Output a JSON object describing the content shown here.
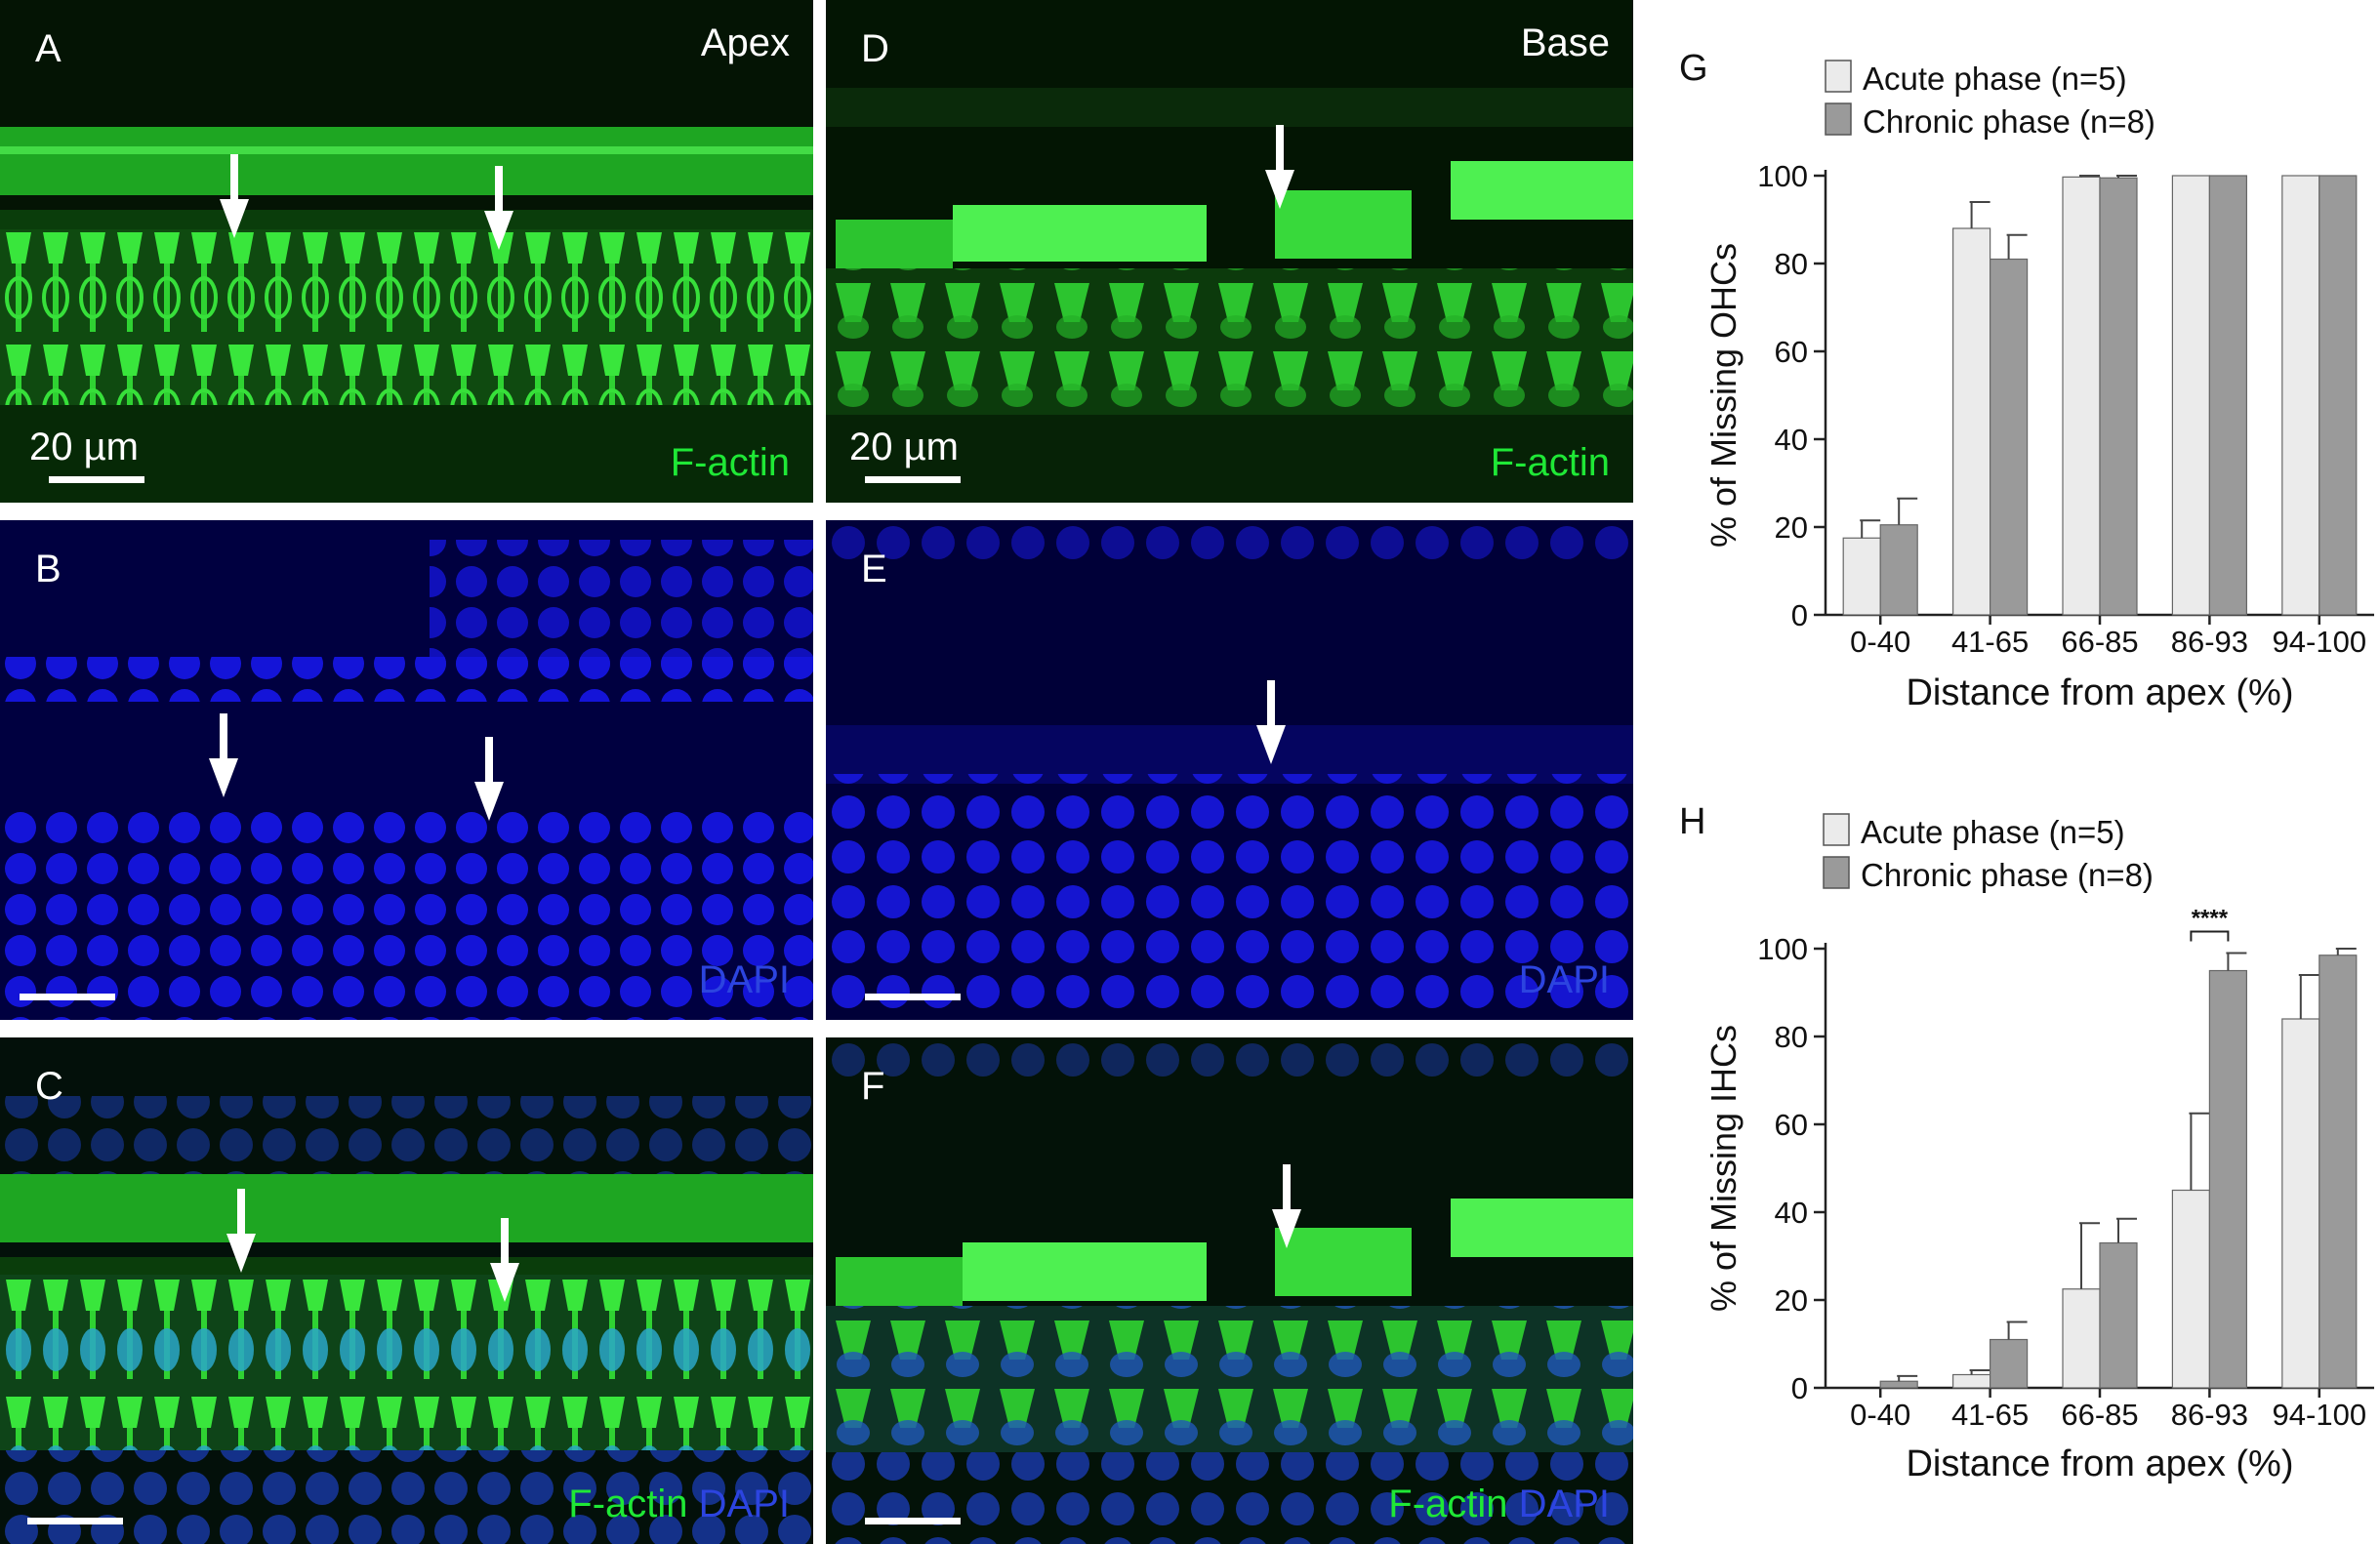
{
  "panels": {
    "A": {
      "letter": "A",
      "region": "Apex",
      "channel": "F-actin",
      "scale": "20 µm"
    },
    "B": {
      "letter": "B",
      "channel": "DAPI"
    },
    "C": {
      "letter": "C",
      "channel_1": "F-actin",
      "channel_2": "DAPI"
    },
    "D": {
      "letter": "D",
      "region": "Base",
      "channel": "F-actin",
      "scale": "20 µm"
    },
    "E": {
      "letter": "E",
      "channel": "DAPI"
    },
    "F": {
      "letter": "F",
      "channel_1": "F-actin",
      "channel_2": "DAPI"
    }
  },
  "colors": {
    "factin": "#1fe836",
    "dapi": "#2c44e0",
    "acute": "#ebebeb",
    "chronic": "#9a9a9a"
  },
  "chart_data": [
    {
      "type": "bar",
      "panel_letter": "G",
      "categories": [
        "0-40",
        "41-65",
        "66-85",
        "86-93",
        "94-100"
      ],
      "series": [
        {
          "name": "Acute phase (n=5)",
          "values": [
            17.5,
            88,
            99.7,
            100,
            100
          ],
          "errors": [
            4,
            6,
            0.3,
            0,
            0
          ]
        },
        {
          "name": "Chronic phase (n=8)",
          "values": [
            20.5,
            81,
            99.5,
            100,
            100
          ],
          "errors": [
            6,
            5.5,
            0.5,
            0,
            0
          ]
        }
      ],
      "xlabel": "Distance from apex (%)",
      "ylabel": "% of Missing OHCs",
      "ylim": [
        0,
        100
      ],
      "yticks": [
        "0",
        "20",
        "40",
        "60",
        "80",
        "100"
      ],
      "legend": "top-left",
      "annotations": []
    },
    {
      "type": "bar",
      "panel_letter": "H",
      "categories": [
        "0-40",
        "41-65",
        "66-85",
        "86-93",
        "94-100"
      ],
      "series": [
        {
          "name": "Acute phase (n=5)",
          "values": [
            0,
            3,
            22.5,
            45,
            84
          ],
          "errors": [
            0,
            1,
            15,
            17.5,
            10
          ]
        },
        {
          "name": "Chronic phase (n=8)",
          "values": [
            1.5,
            11,
            33,
            95,
            98.5
          ],
          "errors": [
            1.2,
            4,
            5.5,
            4,
            1.5
          ]
        }
      ],
      "xlabel": "Distance from apex (%)",
      "ylabel": "% of Missing IHCs",
      "ylim": [
        0,
        100
      ],
      "yticks": [
        "0",
        "20",
        "40",
        "60",
        "80",
        "100"
      ],
      "legend": "top-left",
      "annotations": [
        {
          "category": "86-93",
          "text": "****"
        }
      ]
    }
  ]
}
